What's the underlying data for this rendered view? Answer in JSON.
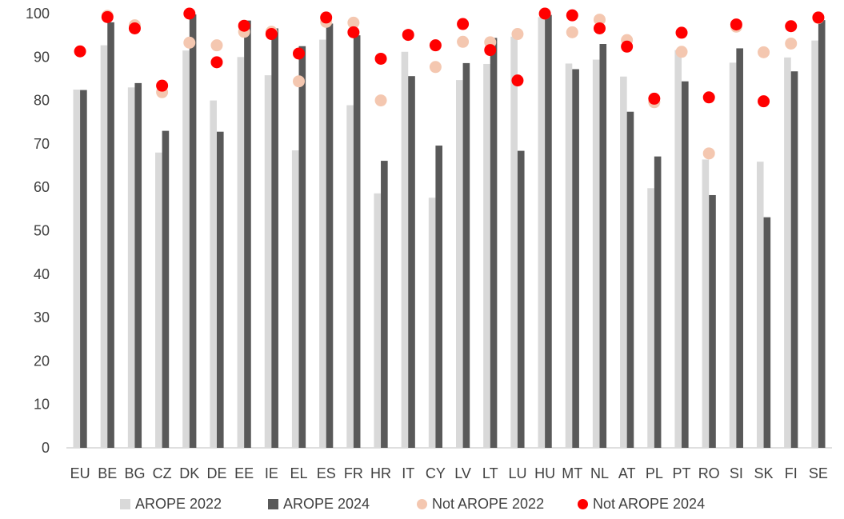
{
  "chart_data": {
    "type": "bar",
    "title": "",
    "xlabel": "",
    "ylabel": "",
    "ylim": [
      0,
      100
    ],
    "yticks": [
      0,
      10,
      20,
      30,
      40,
      50,
      60,
      70,
      80,
      90,
      100
    ],
    "grid": false,
    "legend_position": "bottom",
    "categories": [
      "EU",
      "BE",
      "BG",
      "CZ",
      "DK",
      "DE",
      "EE",
      "IE",
      "EL",
      "ES",
      "FR",
      "HR",
      "IT",
      "CY",
      "LV",
      "LT",
      "LU",
      "HU",
      "MT",
      "NL",
      "AT",
      "PL",
      "PT",
      "RO",
      "SI",
      "SK",
      "FI",
      "SE"
    ],
    "series": [
      {
        "name": "AROPE 2022",
        "kind": "bar",
        "color": "#d9d9d9",
        "values": [
          82.5,
          92.7,
          83.0,
          68.0,
          91.5,
          80.0,
          90.0,
          85.8,
          68.5,
          94.0,
          78.9,
          58.6,
          91.2,
          57.6,
          84.7,
          88.4,
          94.7,
          99.2,
          88.5,
          89.4,
          85.5,
          59.8,
          91.6,
          66.4,
          88.7,
          65.9,
          89.9,
          93.8
        ]
      },
      {
        "name": "AROPE 2024",
        "kind": "bar",
        "color": "#595959",
        "values": [
          82.4,
          98.0,
          84.0,
          73.0,
          99.8,
          72.8,
          98.4,
          96.6,
          92.5,
          97.7,
          95.0,
          66.1,
          85.6,
          69.6,
          88.6,
          94.4,
          68.4,
          99.7,
          87.2,
          93.0,
          77.4,
          67.1,
          84.4,
          58.2,
          92.0,
          53.1,
          86.7,
          98.5
        ]
      },
      {
        "name": "Not AROPE 2022",
        "kind": "marker",
        "color": "#f4c7b0",
        "values": [
          null,
          99.5,
          97.3,
          81.9,
          93.3,
          92.7,
          95.8,
          95.8,
          84.4,
          98.1,
          97.9,
          80.0,
          null,
          87.7,
          93.5,
          93.4,
          95.3,
          100.0,
          95.7,
          98.6,
          93.9,
          79.6,
          91.2,
          67.8,
          97.0,
          91.1,
          93.1,
          99.0
        ]
      },
      {
        "name": "Not AROPE 2024",
        "kind": "marker",
        "color": "#ff0000",
        "values": [
          91.3,
          99.2,
          96.6,
          83.4,
          100.0,
          88.8,
          97.2,
          95.3,
          90.8,
          99.1,
          95.7,
          89.6,
          95.1,
          92.7,
          97.6,
          91.6,
          84.6,
          100.0,
          99.6,
          96.6,
          92.4,
          80.4,
          95.6,
          80.7,
          97.5,
          79.8,
          97.1,
          99.1
        ]
      }
    ]
  }
}
